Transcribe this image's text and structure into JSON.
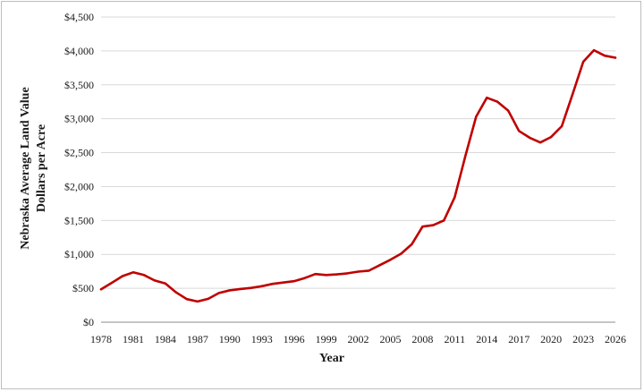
{
  "chart_data": {
    "type": "line",
    "xlabel": "Year",
    "ylabel_line1": "Nebraska  Average Land Value",
    "ylabel_line2": "Dollars per Acre",
    "xlim": [
      1978,
      2026
    ],
    "ylim": [
      0,
      4500
    ],
    "x_ticks": [
      1978,
      1981,
      1984,
      1987,
      1990,
      1993,
      1996,
      1999,
      2002,
      2005,
      2008,
      2011,
      2014,
      2017,
      2020,
      2023,
      2026
    ],
    "y_ticks": [
      0,
      500,
      1000,
      1500,
      2000,
      2500,
      3000,
      3500,
      4000,
      4500
    ],
    "y_tick_labels": [
      "$0",
      "$500",
      "$1,000",
      "$1,500",
      "$2,000",
      "$2,500",
      "$3,000",
      "$3,500",
      "$4,000",
      "$4,500"
    ],
    "grid": "horizontal",
    "series_color": "#c00000",
    "series": [
      {
        "x": [
          1978,
          1979,
          1980,
          1981,
          1982,
          1983,
          1984,
          1985,
          1986,
          1987,
          1988,
          1989,
          1990,
          1991,
          1992,
          1993,
          1994,
          1995,
          1996,
          1997,
          1998,
          1999,
          2000,
          2001,
          2002,
          2003,
          2004,
          2005,
          2006,
          2007,
          2008,
          2009,
          2010,
          2011,
          2012,
          2013,
          2014,
          2015,
          2016,
          2017,
          2018,
          2019,
          2020,
          2021,
          2022,
          2023,
          2024,
          2025,
          2026
        ],
        "values": [
          485,
          580,
          680,
          735,
          695,
          615,
          570,
          440,
          340,
          305,
          345,
          430,
          470,
          490,
          505,
          530,
          565,
          585,
          605,
          650,
          710,
          695,
          705,
          720,
          745,
          760,
          840,
          920,
          1010,
          1150,
          1410,
          1430,
          1500,
          1840,
          2450,
          3030,
          3310,
          3250,
          3120,
          2820,
          2720,
          2650,
          2730,
          2890,
          3360,
          3840,
          4010,
          3930,
          3900
        ]
      }
    ]
  }
}
